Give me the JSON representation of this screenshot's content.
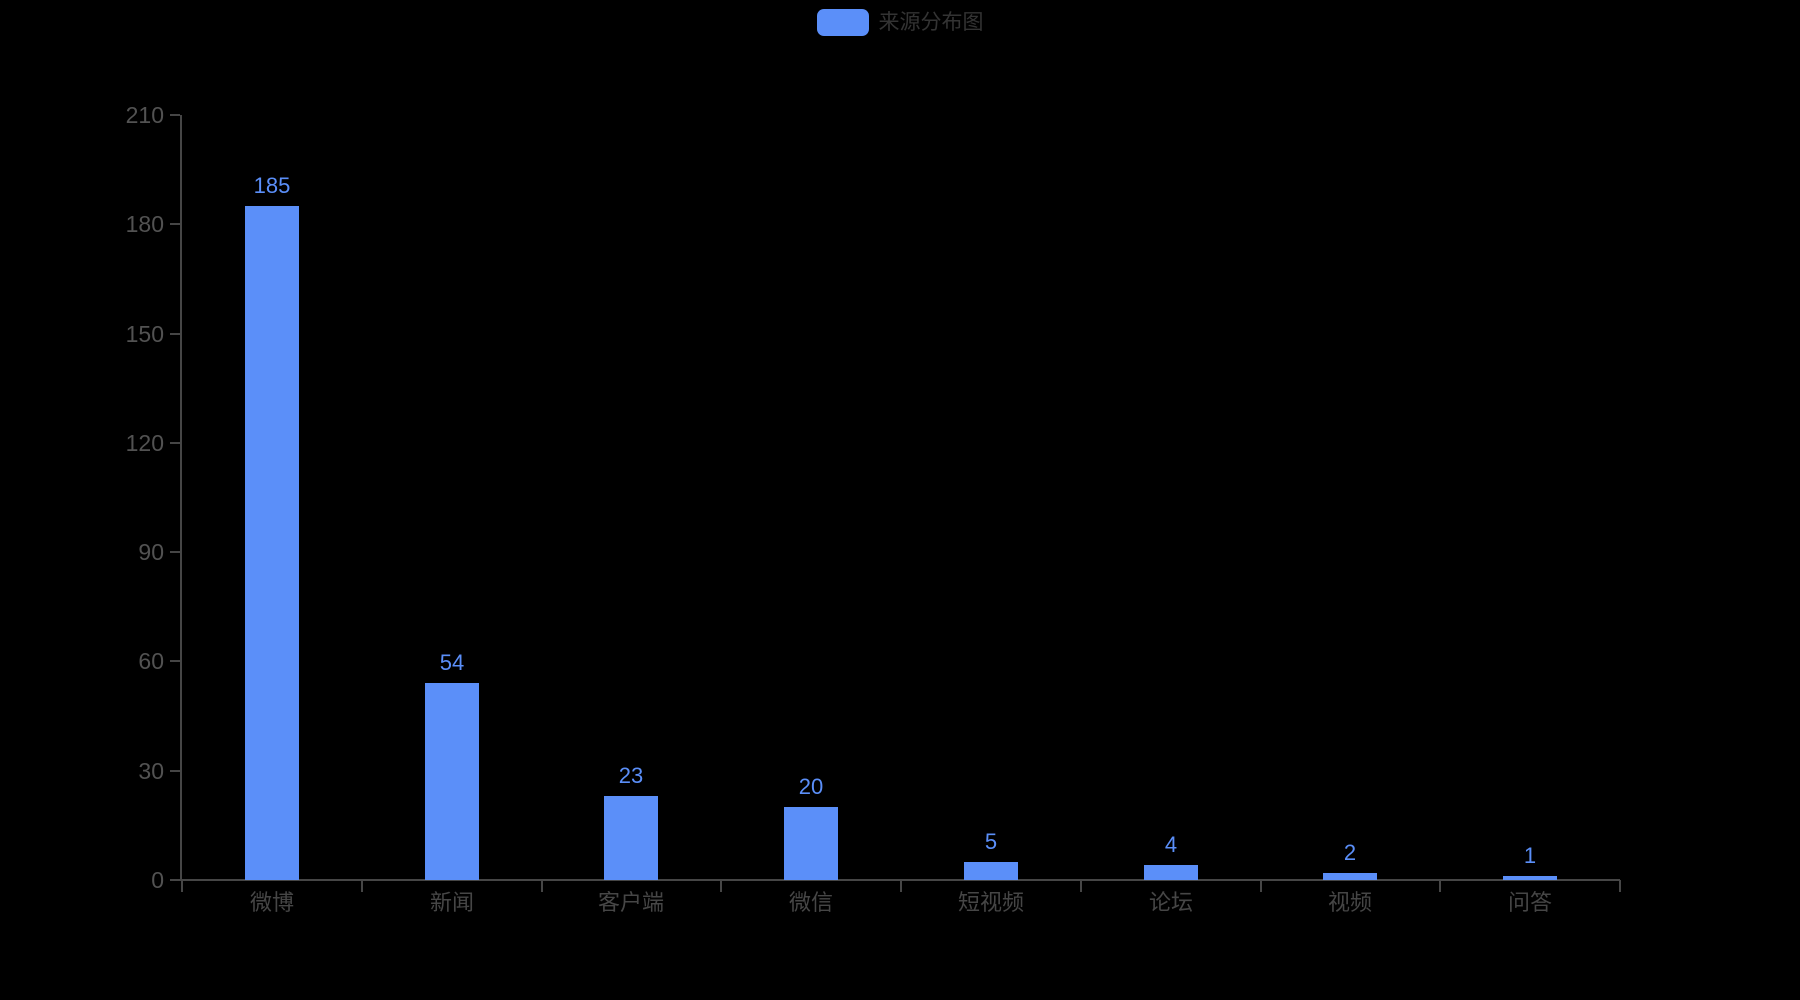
{
  "legend": {
    "label": "来源分布图",
    "swatch_color": "#5B8FF9",
    "text_color": "#333333",
    "position": "top-center"
  },
  "chart_data": {
    "type": "bar",
    "title": "来源分布图",
    "series_name": "来源分布图",
    "categories": [
      "微博",
      "新闻",
      "客户端",
      "微信",
      "短视频",
      "论坛",
      "视频",
      "问答"
    ],
    "values": [
      185,
      54,
      23,
      20,
      5,
      4,
      2,
      1
    ],
    "xlabel": "",
    "ylabel": "",
    "ylim": [
      0,
      210
    ],
    "y_ticks": [
      0,
      30,
      60,
      90,
      120,
      150,
      180,
      210
    ],
    "grid": "off",
    "legend_position": "top-center",
    "bar_color": "#5B8FF9",
    "value_label_color": "#5B8FF9",
    "axis_line_color": "#464646",
    "y_tick_label_color": "#525252",
    "category_label_color": "#464646",
    "background_color": "#000000"
  }
}
